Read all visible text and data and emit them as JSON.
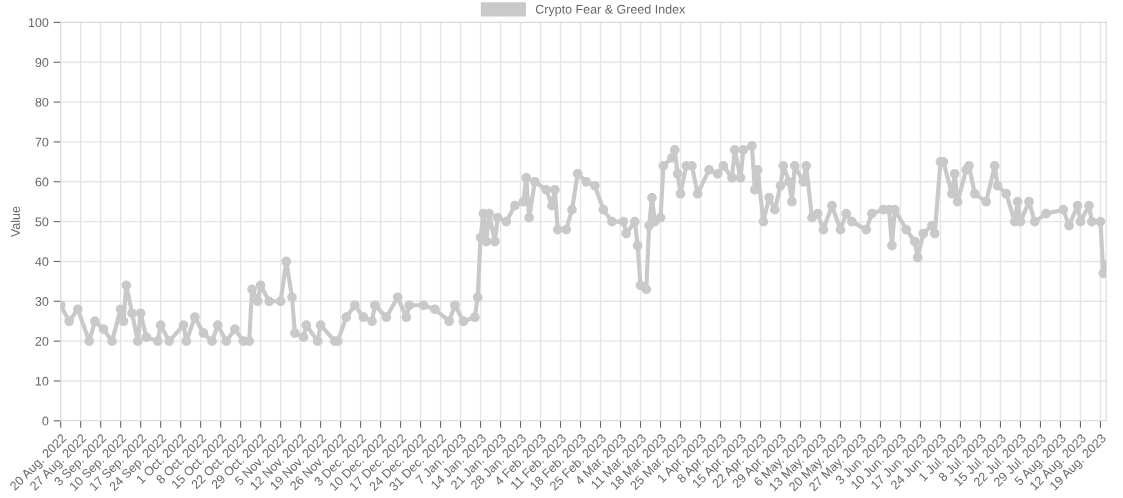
{
  "chart_data": {
    "type": "line",
    "ylabel": "Value",
    "legend": "top",
    "grid": true,
    "marker": "circle",
    "line_style": "solid",
    "xlim": [
      "2022-08-20",
      "2023-08-21"
    ],
    "ylim": [
      0,
      100
    ],
    "yticks": [
      0,
      10,
      20,
      30,
      40,
      50,
      60,
      70,
      80,
      90,
      100
    ],
    "xticks": [
      {
        "value": "2022-08-20",
        "label": "20 Aug. 2022"
      },
      {
        "value": "2022-08-27",
        "label": "27 Aug. 2022"
      },
      {
        "value": "2022-09-03",
        "label": "3 Sep. 2022"
      },
      {
        "value": "2022-09-10",
        "label": "10 Sep. 2022"
      },
      {
        "value": "2022-09-17",
        "label": "17 Sep. 2022"
      },
      {
        "value": "2022-09-24",
        "label": "24 Sep. 2022"
      },
      {
        "value": "2022-10-01",
        "label": "1 Oct. 2022"
      },
      {
        "value": "2022-10-08",
        "label": "8 Oct. 2022"
      },
      {
        "value": "2022-10-15",
        "label": "15 Oct. 2022"
      },
      {
        "value": "2022-10-22",
        "label": "22 Oct. 2022"
      },
      {
        "value": "2022-10-29",
        "label": "29 Oct. 2022"
      },
      {
        "value": "2022-11-05",
        "label": "5 Nov. 2022"
      },
      {
        "value": "2022-11-12",
        "label": "12 Nov. 2022"
      },
      {
        "value": "2022-11-19",
        "label": "19 Nov. 2022"
      },
      {
        "value": "2022-11-26",
        "label": "26 Nov. 2022"
      },
      {
        "value": "2022-12-03",
        "label": "3 Dec. 2022"
      },
      {
        "value": "2022-12-10",
        "label": "10 Dec. 2022"
      },
      {
        "value": "2022-12-17",
        "label": "17 Dec. 2022"
      },
      {
        "value": "2022-12-24",
        "label": "24 Dec. 2022"
      },
      {
        "value": "2022-12-31",
        "label": "31 Dec. 2022"
      },
      {
        "value": "2023-01-07",
        "label": "7 Jan. 2023"
      },
      {
        "value": "2023-01-14",
        "label": "14 Jan. 2023"
      },
      {
        "value": "2023-01-21",
        "label": "21 Jan. 2023"
      },
      {
        "value": "2023-01-28",
        "label": "28 Jan. 2023"
      },
      {
        "value": "2023-02-04",
        "label": "4 Feb. 2023"
      },
      {
        "value": "2023-02-11",
        "label": "11 Feb. 2023"
      },
      {
        "value": "2023-02-18",
        "label": "18 Feb. 2023"
      },
      {
        "value": "2023-02-25",
        "label": "25 Feb. 2023"
      },
      {
        "value": "2023-03-04",
        "label": "4 Mar. 2023"
      },
      {
        "value": "2023-03-11",
        "label": "11 Mar. 2023"
      },
      {
        "value": "2023-03-18",
        "label": "18 Mar. 2023"
      },
      {
        "value": "2023-03-25",
        "label": "25 Mar. 2023"
      },
      {
        "value": "2023-04-01",
        "label": "1 Apr. 2023"
      },
      {
        "value": "2023-04-08",
        "label": "8 Apr. 2023"
      },
      {
        "value": "2023-04-15",
        "label": "15 Apr. 2023"
      },
      {
        "value": "2023-04-22",
        "label": "22 Apr. 2023"
      },
      {
        "value": "2023-04-29",
        "label": "29 Apr. 2023"
      },
      {
        "value": "2023-05-06",
        "label": "6 May. 2023"
      },
      {
        "value": "2023-05-13",
        "label": "13 May. 2023"
      },
      {
        "value": "2023-05-20",
        "label": "20 May. 2023"
      },
      {
        "value": "2023-05-27",
        "label": "27 May. 2023"
      },
      {
        "value": "2023-06-03",
        "label": "3 Jun. 2023"
      },
      {
        "value": "2023-06-10",
        "label": "10 Jun. 2023"
      },
      {
        "value": "2023-06-17",
        "label": "17 Jun. 2023"
      },
      {
        "value": "2023-06-24",
        "label": "24 Jun. 2023"
      },
      {
        "value": "2023-07-01",
        "label": "1 Jul. 2023"
      },
      {
        "value": "2023-07-08",
        "label": "8 Jul. 2023"
      },
      {
        "value": "2023-07-15",
        "label": "15 Jul. 2023"
      },
      {
        "value": "2023-07-22",
        "label": "22 Jul. 2023"
      },
      {
        "value": "2023-07-29",
        "label": "29 Jul. 2023"
      },
      {
        "value": "2023-08-05",
        "label": "5 Aug. 2023"
      },
      {
        "value": "2023-08-12",
        "label": "12 Aug. 2023"
      },
      {
        "value": "2023-08-19",
        "label": "19 Aug. 2023"
      }
    ],
    "x": [
      "2022-08-20",
      "2022-08-23",
      "2022-08-26",
      "2022-08-30",
      "2022-09-01",
      "2022-09-04",
      "2022-09-07",
      "2022-09-10",
      "2022-09-11",
      "2022-09-12",
      "2022-09-14",
      "2022-09-16",
      "2022-09-17",
      "2022-09-19",
      "2022-09-23",
      "2022-09-24",
      "2022-09-27",
      "2022-10-02",
      "2022-10-03",
      "2022-10-06",
      "2022-10-09",
      "2022-10-12",
      "2022-10-14",
      "2022-10-17",
      "2022-10-20",
      "2022-10-23",
      "2022-10-25",
      "2022-10-26",
      "2022-10-28",
      "2022-10-29",
      "2022-11-01",
      "2022-11-05",
      "2022-11-07",
      "2022-11-09",
      "2022-11-10",
      "2022-11-13",
      "2022-11-14",
      "2022-11-18",
      "2022-11-19",
      "2022-11-24",
      "2022-11-25",
      "2022-11-28",
      "2022-12-01",
      "2022-12-04",
      "2022-12-07",
      "2022-12-08",
      "2022-12-12",
      "2022-12-16",
      "2022-12-19",
      "2022-12-20",
      "2022-12-25",
      "2022-12-29",
      "2023-01-03",
      "2023-01-05",
      "2023-01-08",
      "2023-01-12",
      "2023-01-13",
      "2023-01-14",
      "2023-01-15",
      "2023-01-16",
      "2023-01-17",
      "2023-01-19",
      "2023-01-20",
      "2023-01-23",
      "2023-01-26",
      "2023-01-29",
      "2023-01-30",
      "2023-01-31",
      "2023-02-02",
      "2023-02-06",
      "2023-02-08",
      "2023-02-09",
      "2023-02-10",
      "2023-02-13",
      "2023-02-15",
      "2023-02-17",
      "2023-02-20",
      "2023-02-23",
      "2023-02-26",
      "2023-03-01",
      "2023-03-05",
      "2023-03-06",
      "2023-03-09",
      "2023-03-10",
      "2023-03-11",
      "2023-03-13",
      "2023-03-14",
      "2023-03-15",
      "2023-03-16",
      "2023-03-18",
      "2023-03-19",
      "2023-03-22",
      "2023-03-23",
      "2023-03-24",
      "2023-03-25",
      "2023-03-27",
      "2023-03-29",
      "2023-03-31",
      "2023-04-04",
      "2023-04-07",
      "2023-04-09",
      "2023-04-12",
      "2023-04-13",
      "2023-04-15",
      "2023-04-16",
      "2023-04-19",
      "2023-04-20",
      "2023-04-21",
      "2023-04-23",
      "2023-04-25",
      "2023-04-27",
      "2023-04-29",
      "2023-04-30",
      "2023-05-02",
      "2023-05-03",
      "2023-05-04",
      "2023-05-07",
      "2023-05-08",
      "2023-05-10",
      "2023-05-12",
      "2023-05-14",
      "2023-05-17",
      "2023-05-20",
      "2023-05-22",
      "2023-05-24",
      "2023-05-29",
      "2023-05-31",
      "2023-06-04",
      "2023-06-06",
      "2023-06-07",
      "2023-06-08",
      "2023-06-12",
      "2023-06-15",
      "2023-06-16",
      "2023-06-18",
      "2023-06-21",
      "2023-06-22",
      "2023-06-24",
      "2023-06-25",
      "2023-06-28",
      "2023-06-29",
      "2023-06-30",
      "2023-07-03",
      "2023-07-04",
      "2023-07-06",
      "2023-07-10",
      "2023-07-13",
      "2023-07-14",
      "2023-07-17",
      "2023-07-20",
      "2023-07-21",
      "2023-07-22",
      "2023-07-25",
      "2023-07-27",
      "2023-07-31",
      "2023-08-06",
      "2023-08-08",
      "2023-08-11",
      "2023-08-12",
      "2023-08-15",
      "2023-08-16",
      "2023-08-19",
      "2023-08-20",
      "2023-08-21"
    ],
    "series": [
      {
        "name": "Crypto Fear & Greed Index",
        "color": "#c9c9c9",
        "values": [
          29,
          25,
          28,
          20,
          25,
          23,
          20,
          28,
          25,
          34,
          27,
          20,
          27,
          21,
          20,
          24,
          20,
          24,
          20,
          26,
          22,
          20,
          24,
          20,
          23,
          20,
          20,
          33,
          30,
          34,
          30,
          30,
          40,
          31,
          22,
          21,
          24,
          20,
          24,
          20,
          20,
          26,
          29,
          26,
          25,
          29,
          26,
          31,
          26,
          29,
          29,
          28,
          25,
          29,
          25,
          26,
          31,
          46,
          52,
          45,
          52,
          45,
          51,
          50,
          54,
          55,
          61,
          51,
          60,
          58,
          54,
          58,
          48,
          48,
          53,
          62,
          60,
          59,
          53,
          50,
          50,
          47,
          50,
          44,
          34,
          33,
          49,
          56,
          50,
          51,
          64,
          66,
          68,
          62,
          57,
          64,
          64,
          57,
          63,
          62,
          64,
          61,
          68,
          61,
          68,
          69,
          58,
          63,
          50,
          56,
          53,
          59,
          64,
          60,
          55,
          64,
          60,
          64,
          51,
          52,
          48,
          54,
          48,
          52,
          50,
          48,
          52,
          53,
          53,
          44,
          53,
          48,
          45,
          41,
          47,
          49,
          47,
          65,
          65,
          57,
          62,
          55,
          63,
          64,
          57,
          55,
          64,
          59,
          57,
          50,
          55,
          50,
          55,
          50,
          52,
          53,
          49,
          54,
          50,
          54,
          50,
          50,
          37,
          39
        ]
      }
    ]
  }
}
